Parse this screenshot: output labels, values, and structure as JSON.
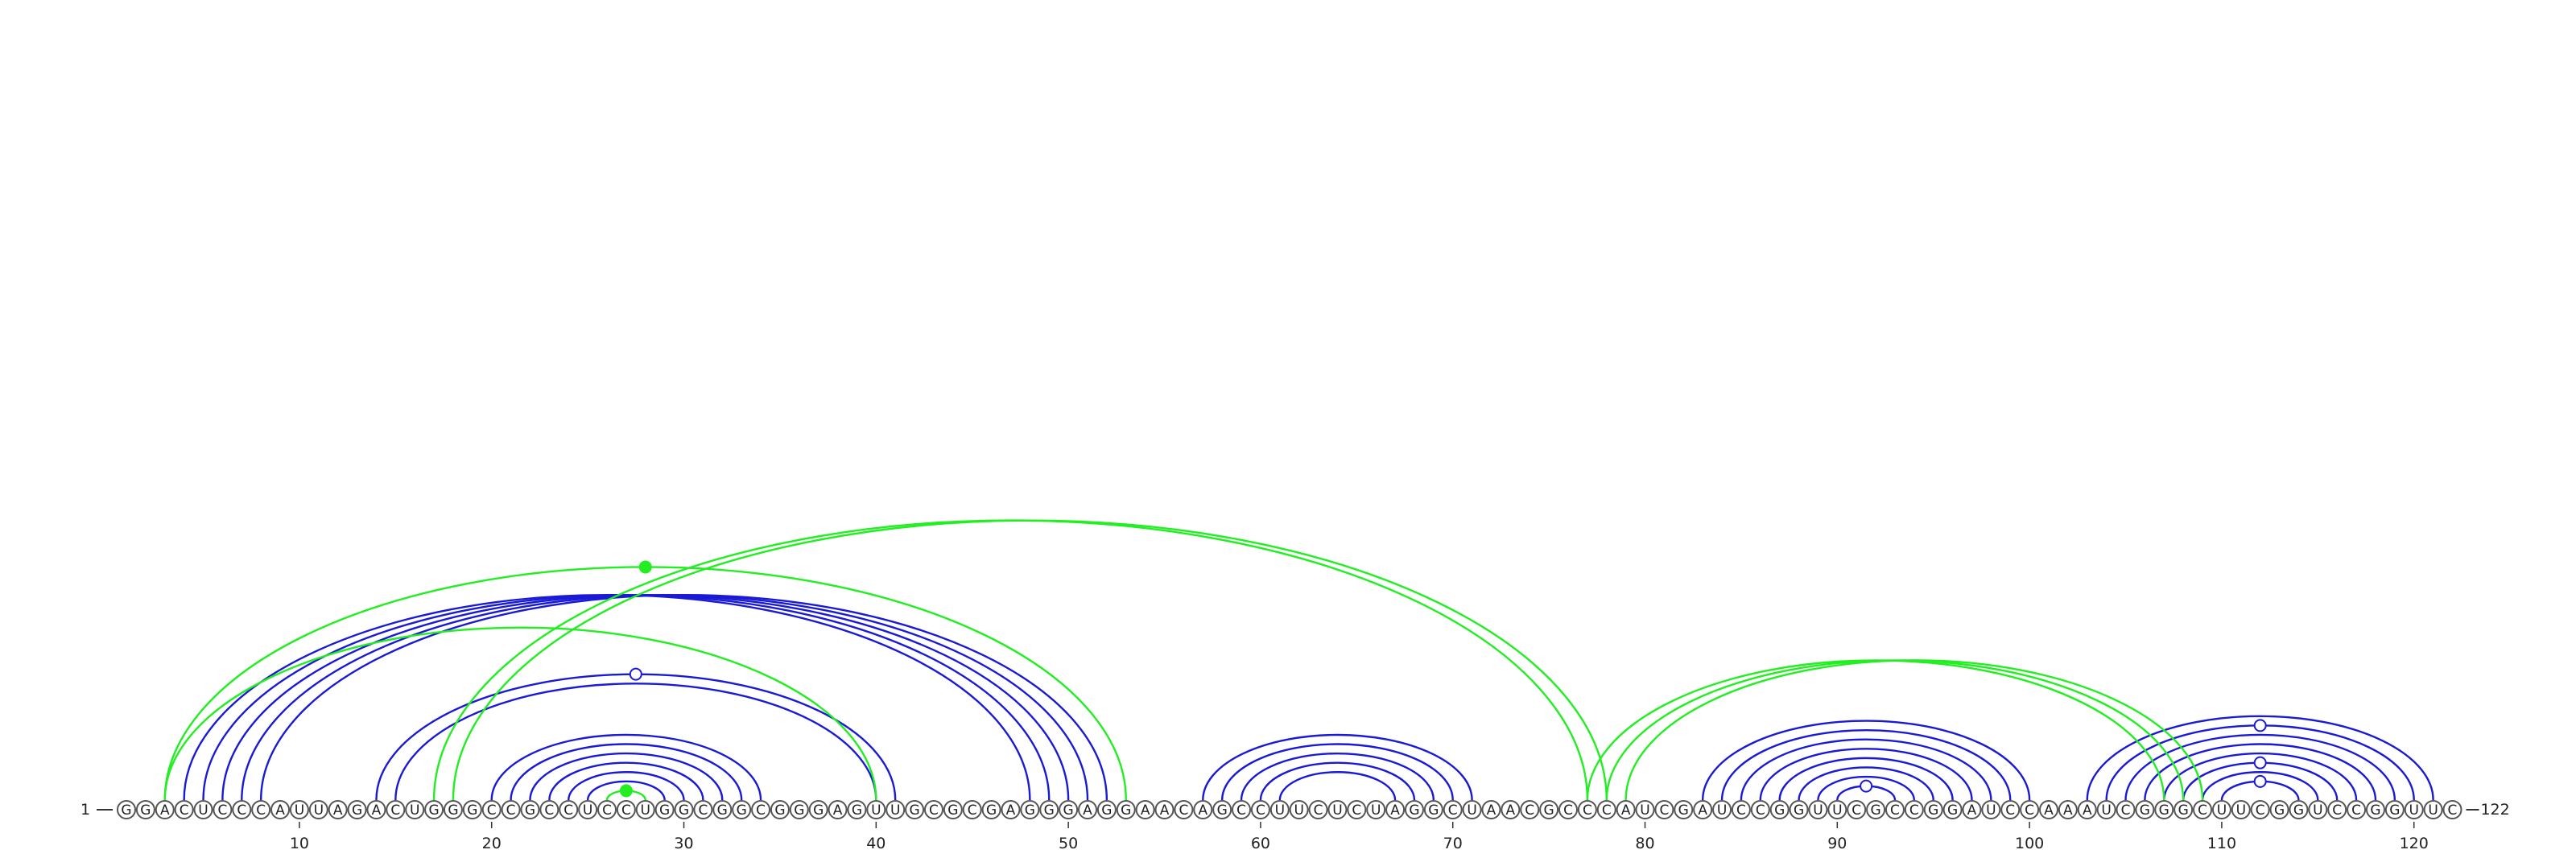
{
  "sequence": "GGACUCCCAUUAGACUGGGCCGCCUCCUGGCGGCGGGAGUUGCGCGAGGGAGGAACAGCCUUCUCUAGGCUAACGCCCAUCGAUCCGGUUCGCCGGAUCCAAAUCGGGCUUCGGUCCGGUUC",
  "start_label": "1",
  "end_label": "122",
  "ticks": [
    "10",
    "20",
    "30",
    "40",
    "50",
    "60",
    "70",
    "80",
    "90",
    "100",
    "110",
    "120"
  ],
  "colors": {
    "blue": "#1a1ad6",
    "green": "#22ee22"
  },
  "arcs": {
    "blue": [
      {
        "i": 4,
        "j": 48
      },
      {
        "i": 5,
        "j": 49
      },
      {
        "i": 6,
        "j": 50
      },
      {
        "i": 7,
        "j": 51
      },
      {
        "i": 8,
        "j": 52
      },
      {
        "i": 14,
        "j": 41
      },
      {
        "i": 15,
        "j": 40
      },
      {
        "i": 20,
        "j": 34
      },
      {
        "i": 21,
        "j": 33
      },
      {
        "i": 22,
        "j": 32
      },
      {
        "i": 23,
        "j": 31
      },
      {
        "i": 24,
        "j": 30
      },
      {
        "i": 25,
        "j": 29
      },
      {
        "i": 57,
        "j": 71
      },
      {
        "i": 58,
        "j": 70
      },
      {
        "i": 59,
        "j": 69
      },
      {
        "i": 60,
        "j": 68
      },
      {
        "i": 61,
        "j": 67
      },
      {
        "i": 83,
        "j": 100
      },
      {
        "i": 84,
        "j": 99
      },
      {
        "i": 85,
        "j": 98
      },
      {
        "i": 86,
        "j": 97
      },
      {
        "i": 87,
        "j": 96
      },
      {
        "i": 88,
        "j": 95
      },
      {
        "i": 89,
        "j": 94
      },
      {
        "i": 90,
        "j": 93
      },
      {
        "i": 103,
        "j": 121
      },
      {
        "i": 104,
        "j": 120
      },
      {
        "i": 105,
        "j": 119
      },
      {
        "i": 106,
        "j": 118
      },
      {
        "i": 107,
        "j": 117
      },
      {
        "i": 108,
        "j": 116
      },
      {
        "i": 109,
        "j": 115
      },
      {
        "i": 110,
        "j": 114
      }
    ],
    "green": [
      {
        "i": 3,
        "j": 53
      },
      {
        "i": 3,
        "j": 40
      },
      {
        "i": 26,
        "j": 28
      },
      {
        "i": 17,
        "j": 77
      },
      {
        "i": 18,
        "j": 78
      },
      {
        "i": 77,
        "j": 107
      },
      {
        "i": 78,
        "j": 108
      },
      {
        "i": 79,
        "j": 109
      }
    ]
  },
  "markers": [
    {
      "i": 14,
      "j": 41,
      "style": "open",
      "color": "blue"
    },
    {
      "i": 90,
      "j": 93,
      "style": "open",
      "color": "blue"
    },
    {
      "i": 110,
      "j": 114,
      "style": "open",
      "color": "blue"
    },
    {
      "i": 108,
      "j": 116,
      "style": "open",
      "color": "blue"
    },
    {
      "i": 104,
      "j": 120,
      "style": "open",
      "color": "blue"
    },
    {
      "i": 3,
      "j": 53,
      "style": "filled",
      "color": "green"
    },
    {
      "i": 26,
      "j": 28,
      "style": "filled",
      "color": "green"
    }
  ]
}
